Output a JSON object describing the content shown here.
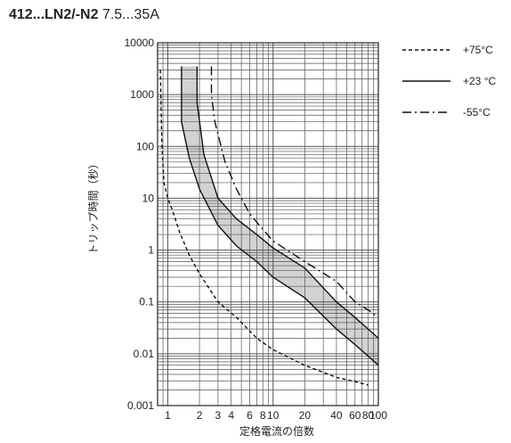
{
  "title": {
    "bold": "412...LN2/-N2",
    "rest": "7.5...35A"
  },
  "chart_data": {
    "type": "line",
    "xlabel": "定格電流の倍数",
    "ylabel": "トリップ時間（秒）",
    "x_scale": "log",
    "y_scale": "log",
    "xlim": [
      0.8,
      100
    ],
    "ylim": [
      0.001,
      10000
    ],
    "grid": true,
    "legend_position": "top-right",
    "x_tick_labels": [
      "1",
      "2",
      "3",
      "4",
      "6",
      "8",
      "10",
      "20",
      "40",
      "60",
      "80",
      "100"
    ],
    "y_tick_labels": [
      "0.001",
      "0.01",
      "0.1",
      "1",
      "10",
      "100",
      "1000",
      "10000"
    ],
    "legend": [
      {
        "label": "+75°C",
        "style": "dotted"
      },
      {
        "label": "+23 °C",
        "style": "solid"
      },
      {
        "label": "-55°C",
        "style": "dashdot"
      }
    ],
    "series": [
      {
        "name": "+75°C",
        "style": "dotted",
        "x": [
          0.85,
          0.88,
          0.92,
          1.0,
          1.1,
          1.3,
          1.6,
          2.0,
          3.0,
          4.5,
          7.0,
          10,
          20,
          40,
          60,
          80
        ],
        "y": [
          3000,
          100,
          20,
          10,
          6,
          2.2,
          0.8,
          0.35,
          0.1,
          0.05,
          0.02,
          0.012,
          0.006,
          0.0035,
          0.0029,
          0.0025
        ]
      },
      {
        "name": "+23 °C lower",
        "style": "solid",
        "x": [
          1.35,
          1.35,
          1.6,
          2.0,
          3.0,
          4.5,
          7.0,
          10,
          20,
          40,
          60,
          80,
          100
        ],
        "y": [
          3500,
          300,
          60,
          15,
          3,
          1.2,
          0.6,
          0.3,
          0.12,
          0.03,
          0.015,
          0.009,
          0.006
        ]
      },
      {
        "name": "+23 °C upper",
        "style": "solid",
        "x": [
          1.9,
          1.9,
          2.2,
          3.0,
          4.5,
          7.0,
          10,
          20,
          40,
          60,
          80,
          100
        ],
        "y": [
          3500,
          700,
          70,
          10,
          4,
          2,
          1.1,
          0.45,
          0.1,
          0.05,
          0.03,
          0.02
        ]
      },
      {
        "name": "-55°C",
        "style": "dashdot",
        "x": [
          2.6,
          2.6,
          2.8,
          3.5,
          4.5,
          6.0,
          8.0,
          10,
          20,
          40,
          60,
          80,
          100
        ],
        "y": [
          3500,
          1000,
          300,
          50,
          15,
          5,
          2.5,
          1.5,
          0.6,
          0.25,
          0.1,
          0.07,
          0.05
        ]
      }
    ]
  }
}
